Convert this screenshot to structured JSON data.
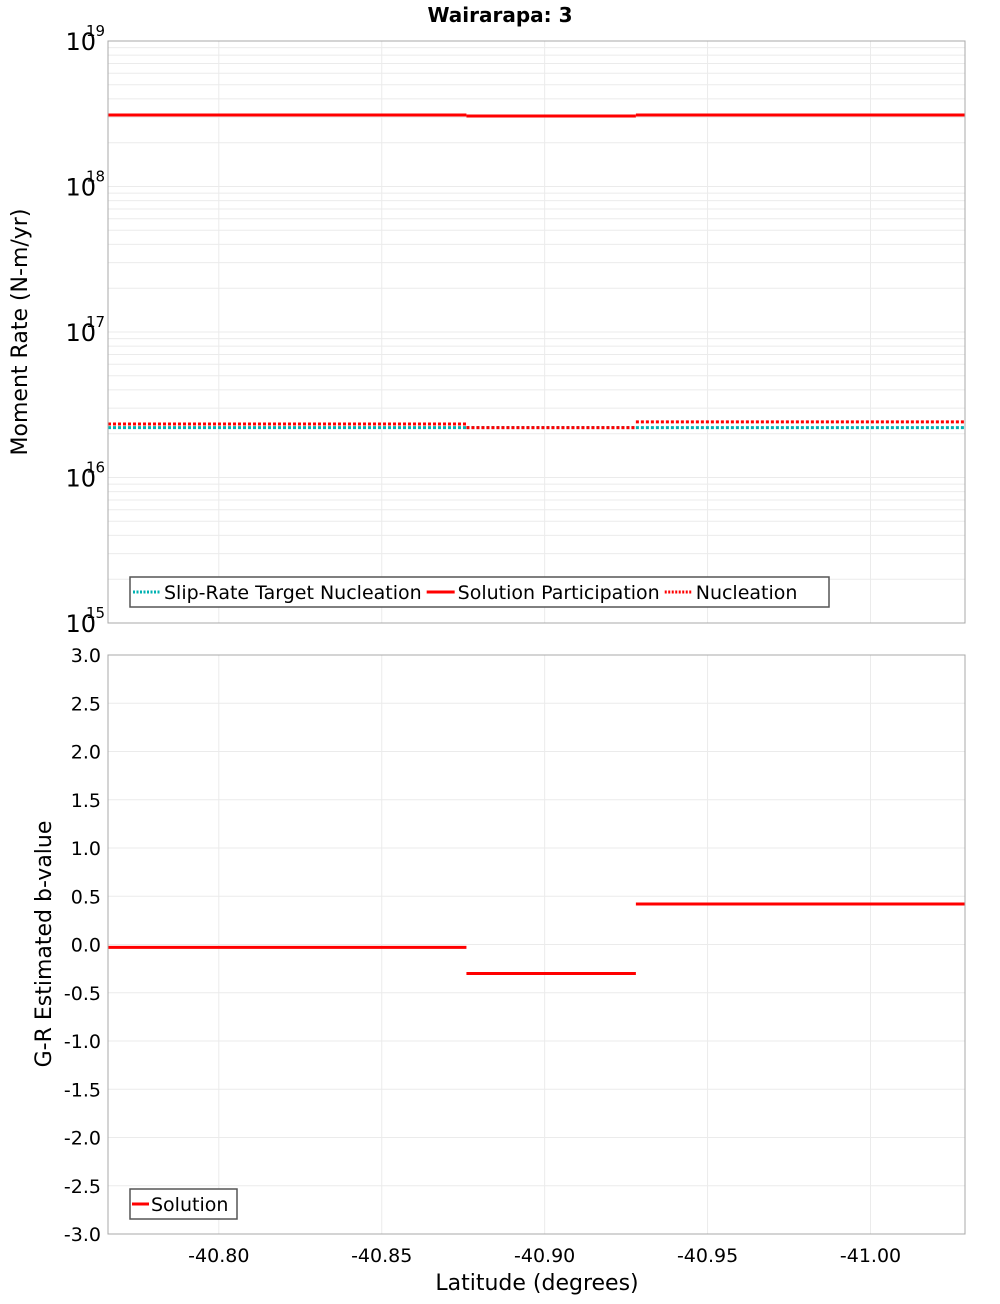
{
  "title": "Wairarapa: 3",
  "colors": {
    "solution": "#ff0000",
    "target": "#00b2b2",
    "nucleation": "#ff0000",
    "grid": "#ebebeb",
    "frame": "#a8a8a8"
  },
  "chart_data": [
    {
      "type": "line",
      "panel": "top",
      "title": "Wairarapa: 3",
      "xlabel": "",
      "ylabel": "Moment Rate (N-m/yr)",
      "yscale": "log",
      "ylim": [
        1000000000000000.0,
        1e+19
      ],
      "xlim": [
        -40.766,
        -41.029
      ],
      "y_tick_labels": [
        {
          "base": "10",
          "exp": "19",
          "value": 1e+19
        },
        {
          "base": "10",
          "exp": "18",
          "value": 1e+18
        },
        {
          "base": "10",
          "exp": "17",
          "value": 1e+17
        },
        {
          "base": "10",
          "exp": "16",
          "value": 1e+16
        },
        {
          "base": "10",
          "exp": "15",
          "value": 1000000000000000.0
        }
      ],
      "grid": true,
      "legend_position": "lower-left",
      "series": [
        {
          "name": "Slip-Rate Target Nucleation",
          "style": "dotted",
          "color": "#00b2b2",
          "segments": [
            {
              "x0": -40.766,
              "x1": -40.876,
              "y": 2.2e+16
            },
            {
              "x0": -40.876,
              "x1": -40.928,
              "y": 2.2e+16
            },
            {
              "x0": -40.928,
              "x1": -41.029,
              "y": 2.2e+16
            }
          ]
        },
        {
          "name": "Solution Participation",
          "style": "solid",
          "color": "#ff0000",
          "segments": [
            {
              "x0": -40.766,
              "x1": -40.876,
              "y": 3.1e+18
            },
            {
              "x0": -40.876,
              "x1": -40.928,
              "y": 3.05e+18
            },
            {
              "x0": -40.928,
              "x1": -41.029,
              "y": 3.1e+18
            }
          ]
        },
        {
          "name": "Nucleation",
          "style": "dotted",
          "color": "#ff0000",
          "segments": [
            {
              "x0": -40.766,
              "x1": -40.876,
              "y": 2.33e+16
            },
            {
              "x0": -40.876,
              "x1": -40.928,
              "y": 2.2e+16
            },
            {
              "x0": -40.928,
              "x1": -41.029,
              "y": 2.41e+16
            }
          ]
        }
      ]
    },
    {
      "type": "line",
      "panel": "bottom",
      "xlabel": "Latitude (degrees)",
      "ylabel": "G-R Estimated b-value",
      "yscale": "linear",
      "ylim": [
        -3.0,
        3.0
      ],
      "xlim": [
        -40.766,
        -41.029
      ],
      "y_ticks": [
        "3.0",
        "2.5",
        "2.0",
        "1.5",
        "1.0",
        "0.5",
        "0.0",
        "-0.5",
        "-1.0",
        "-1.5",
        "-2.0",
        "-2.5",
        "-3.0"
      ],
      "x_ticks": [
        "-40.80",
        "-40.85",
        "-40.90",
        "-40.95",
        "-41.00"
      ],
      "x_tick_values": [
        -40.8,
        -40.85,
        -40.9,
        -40.95,
        -41.0
      ],
      "grid": true,
      "legend_position": "lower-left",
      "series": [
        {
          "name": "Solution",
          "style": "solid",
          "color": "#ff0000",
          "segments": [
            {
              "x0": -40.766,
              "x1": -40.876,
              "y": -0.03
            },
            {
              "x0": -40.876,
              "x1": -40.928,
              "y": -0.3
            },
            {
              "x0": -40.928,
              "x1": -41.029,
              "y": 0.42
            }
          ]
        }
      ]
    }
  ]
}
